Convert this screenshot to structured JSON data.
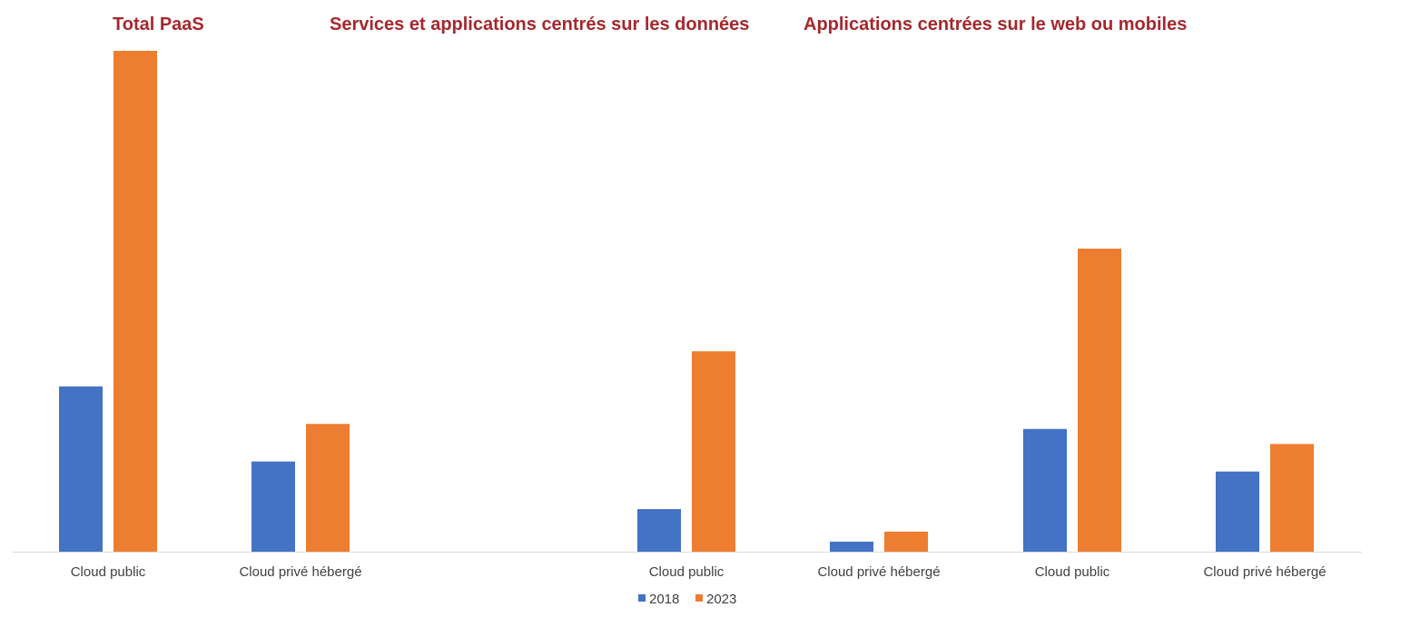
{
  "chart_data": {
    "type": "bar",
    "groups": [
      {
        "title": "Total PaaS",
        "categories": [
          "Cloud public",
          "Cloud privé hébergé"
        ]
      },
      {
        "title": "Services et applications centrés sur les données",
        "categories": [
          "Cloud public",
          "Cloud privé hébergé"
        ]
      },
      {
        "title": "Applications centrées sur le web ou mobiles",
        "categories": [
          "Cloud public",
          "Cloud privé hébergé"
        ]
      }
    ],
    "categories": [
      "Cloud public",
      "Cloud privé hébergé",
      "Cloud public",
      "Cloud privé hébergé",
      "Cloud public",
      "Cloud privé hébergé"
    ],
    "series": [
      {
        "name": "2018",
        "color": "#4472c4",
        "values": [
          33,
          18,
          8.5,
          2,
          24.5,
          16
        ]
      },
      {
        "name": "2023",
        "color": "#ed7d31",
        "values": [
          100,
          25.5,
          40,
          4,
          60.5,
          21.5
        ]
      }
    ],
    "ylim": [
      0,
      100
    ],
    "grid": false,
    "legend_position": "bottom-center",
    "title": "",
    "xlabel": "",
    "ylabel": ""
  }
}
